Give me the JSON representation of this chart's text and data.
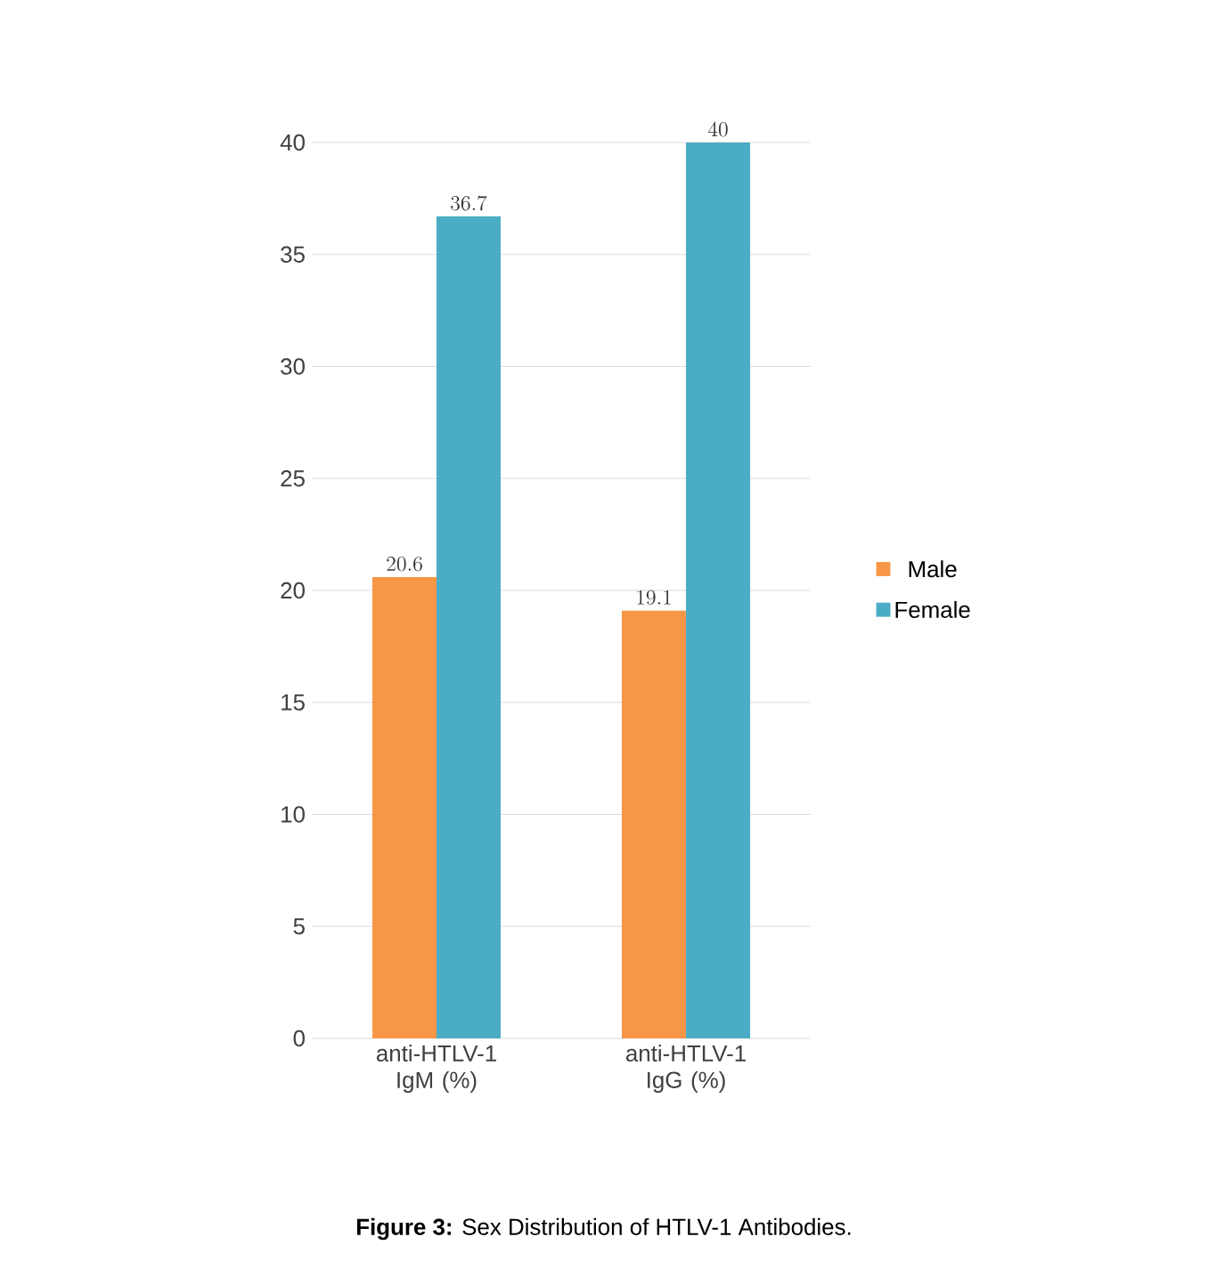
{
  "chart_data": {
    "type": "bar",
    "categories": [
      "anti-HTLV-1 IgM (%)",
      "anti-HTLV-1 IgG (%)"
    ],
    "series": [
      {
        "name": "Male",
        "color": "#f79646",
        "values": [
          20.6,
          19.1
        ]
      },
      {
        "name": "Female",
        "color": "#4bacc6",
        "values": [
          36.7,
          40
        ]
      }
    ],
    "ylim": [
      0,
      40
    ],
    "yticks": [
      0,
      5,
      10,
      15,
      20,
      25,
      30,
      35,
      40
    ],
    "grid": "y",
    "legend": "right",
    "data_labels": true,
    "annotations": [
      "**Figure 3:** Sex Distribution of HTLV-1 Antibodies."
    ]
  }
}
